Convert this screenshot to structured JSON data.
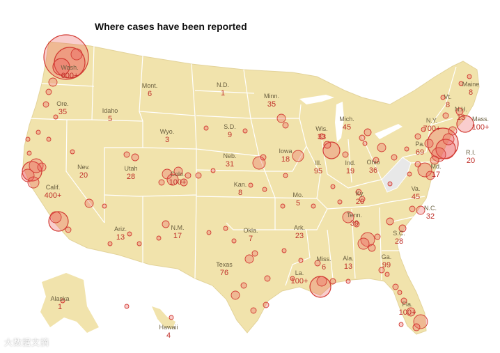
{
  "title": "Where cases have been reported",
  "colors": {
    "land": "#f1e3ac",
    "border": "#ffffff",
    "no_data": "#e8e8e8",
    "bubble_fill": "rgba(236,90,90,0.30)",
    "bubble_stroke": "#d23b33",
    "label_count": "#c0302a"
  },
  "states": [
    {
      "id": "wa",
      "name": "Wash.",
      "count": "600+"
    },
    {
      "id": "or",
      "name": "Ore.",
      "count": "35"
    },
    {
      "id": "ca",
      "name": "Calif.",
      "count": "400+"
    },
    {
      "id": "nv",
      "name": "Nev.",
      "count": "20"
    },
    {
      "id": "id",
      "name": "Idaho",
      "count": "5"
    },
    {
      "id": "mt",
      "name": "Mont.",
      "count": "6"
    },
    {
      "id": "wy",
      "name": "Wyo.",
      "count": "3"
    },
    {
      "id": "ut",
      "name": "Utah",
      "count": "28"
    },
    {
      "id": "co",
      "name": "Colo.",
      "count": "100+"
    },
    {
      "id": "az",
      "name": "Ariz.",
      "count": "13"
    },
    {
      "id": "nm",
      "name": "N.M.",
      "count": "17"
    },
    {
      "id": "nd",
      "name": "N.D.",
      "count": "1"
    },
    {
      "id": "sd",
      "name": "S.D.",
      "count": "9"
    },
    {
      "id": "ne",
      "name": "Neb.",
      "count": "31"
    },
    {
      "id": "ks",
      "name": "Kan.",
      "count": "8"
    },
    {
      "id": "ok",
      "name": "Okla.",
      "count": "7"
    },
    {
      "id": "tx",
      "name": "Texas",
      "count": "76"
    },
    {
      "id": "mn",
      "name": "Minn.",
      "count": "35"
    },
    {
      "id": "ia",
      "name": "Iowa",
      "count": "18"
    },
    {
      "id": "mo",
      "name": "Mo.",
      "count": "5"
    },
    {
      "id": "ar",
      "name": "Ark.",
      "count": "23"
    },
    {
      "id": "la",
      "name": "La.",
      "count": "100+"
    },
    {
      "id": "wi",
      "name": "Wis.",
      "count": "33"
    },
    {
      "id": "il",
      "name": "Ill.",
      "count": "95"
    },
    {
      "id": "mi",
      "name": "Mich.",
      "count": "45"
    },
    {
      "id": "in",
      "name": "Ind.",
      "count": "19"
    },
    {
      "id": "oh",
      "name": "Ohio",
      "count": "36"
    },
    {
      "id": "ky",
      "name": "Ky.",
      "count": "20"
    },
    {
      "id": "tn",
      "name": "Tenn.",
      "count": "39"
    },
    {
      "id": "ms",
      "name": "Miss.",
      "count": "6"
    },
    {
      "id": "al",
      "name": "Ala.",
      "count": "13"
    },
    {
      "id": "ga",
      "name": "Ga.",
      "count": "99"
    },
    {
      "id": "fl",
      "name": "Fla.",
      "count": "100+"
    },
    {
      "id": "sc",
      "name": "S.C.",
      "count": "28"
    },
    {
      "id": "nc",
      "name": "N.C.",
      "count": "32"
    },
    {
      "id": "va",
      "name": "Va.",
      "count": "45"
    },
    {
      "id": "pa",
      "name": "Pa.",
      "count": "69"
    },
    {
      "id": "ny",
      "name": "N.Y.",
      "count": "700+"
    },
    {
      "id": "vt",
      "name": "Vt.",
      "count": "8"
    },
    {
      "id": "nh",
      "name": "N.H.",
      "count": "13"
    },
    {
      "id": "me",
      "name": "Maine",
      "count": "8"
    },
    {
      "id": "ma",
      "name": "Mass.",
      "count": "100+"
    },
    {
      "id": "ri",
      "name": "R.I.",
      "count": "20"
    },
    {
      "id": "md",
      "name": "Md.",
      "count": "17"
    },
    {
      "id": "ak",
      "name": "Alaska",
      "count": "1"
    },
    {
      "id": "hi",
      "name": "Hawaii",
      "count": "4"
    }
  ],
  "watermark": "大数据文摘"
}
